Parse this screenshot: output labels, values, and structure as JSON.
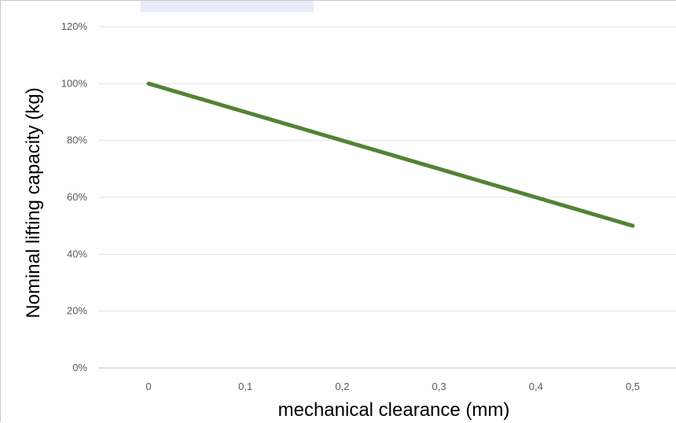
{
  "chart_data": {
    "type": "line",
    "title": "",
    "xlabel": "mechanical clearance (mm)",
    "ylabel": "Nominal lifting capacity (kg)",
    "categories": [
      "0",
      "0,1",
      "0,2",
      "0,3",
      "0,4",
      "0,5"
    ],
    "series": [
      {
        "values": [
          100,
          90,
          80,
          70,
          60,
          50
        ],
        "color": "#548235"
      }
    ],
    "ylim": [
      0,
      120
    ],
    "yticks": [
      "0%",
      "20%",
      "40%",
      "60%",
      "80%",
      "100%",
      "120%"
    ],
    "grid": true,
    "legend": "none"
  }
}
